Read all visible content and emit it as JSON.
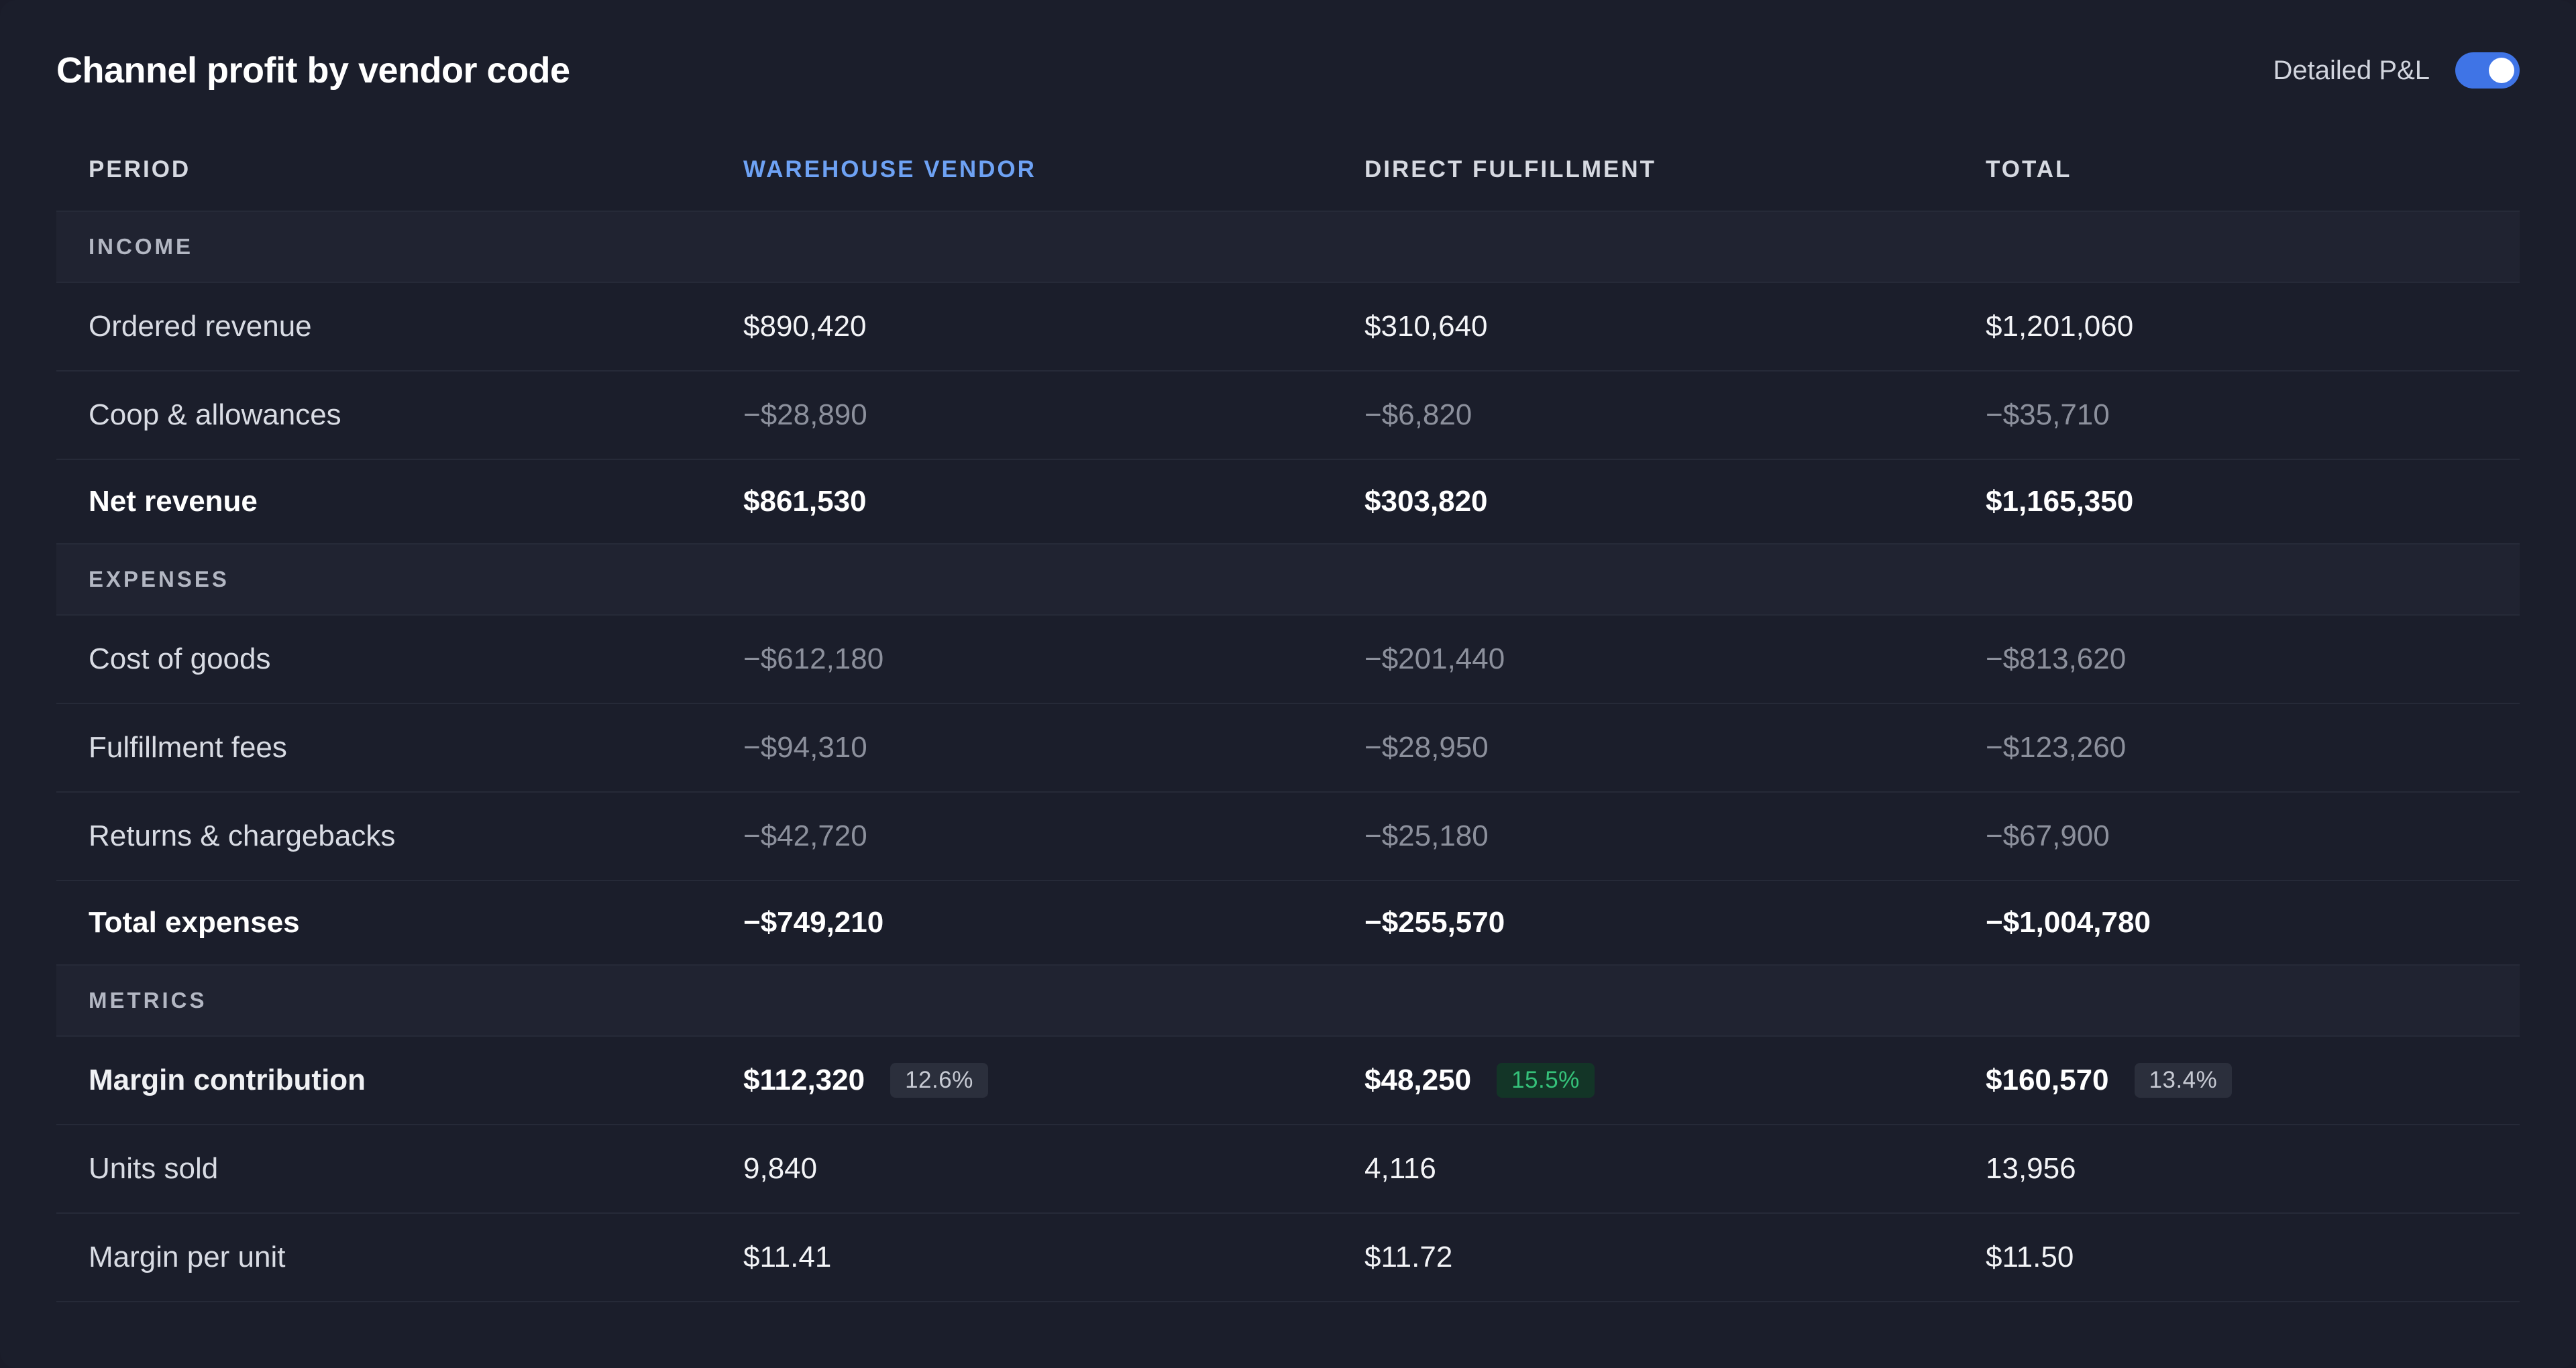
{
  "header": {
    "title": "Channel profit by vendor code",
    "toggle_label": "Detailed P&L",
    "toggle_on": true
  },
  "columns": [
    "PERIOD",
    "WAREHOUSE VENDOR",
    "DIRECT FULFILLMENT",
    "TOTAL"
  ],
  "colors": {
    "accent": "#6ea2f4",
    "toggle": "#3f74e6",
    "badge_good_text": "#35c27a",
    "badge_good_bg": "#133527"
  },
  "sections": {
    "income": "INCOME",
    "expenses": "EXPENSES",
    "metrics": "METRICS"
  },
  "rows": {
    "ordered_revenue": {
      "label": "Ordered revenue",
      "values": [
        "$890,420",
        "$310,640",
        "$1,201,060"
      ]
    },
    "coop": {
      "label": "Coop & allowances",
      "values": [
        "−$28,890",
        "−$6,820",
        "−$35,710"
      ]
    },
    "net_revenue": {
      "label": "Net revenue",
      "values": [
        "$861,530",
        "$303,820",
        "$1,165,350"
      ]
    },
    "cost_of_goods": {
      "label": "Cost of goods",
      "values": [
        "−$612,180",
        "−$201,440",
        "−$813,620"
      ]
    },
    "fulfillment_fees": {
      "label": "Fulfillment fees",
      "values": [
        "−$94,310",
        "−$28,950",
        "−$123,260"
      ]
    },
    "returns": {
      "label": "Returns & chargebacks",
      "values": [
        "−$42,720",
        "−$25,180",
        "−$67,900"
      ]
    },
    "total_expenses": {
      "label": "Total expenses",
      "values": [
        "−$749,210",
        "−$255,570",
        "−$1,004,780"
      ]
    },
    "margin_contribution": {
      "label": "Margin contribution",
      "values": [
        "$112,320",
        "$48,250",
        "$160,570"
      ],
      "badges": [
        "12.6%",
        "15.5%",
        "13.4%"
      ]
    },
    "units_sold": {
      "label": "Units sold",
      "values": [
        "9,840",
        "4,116",
        "13,956"
      ]
    },
    "margin_per_unit": {
      "label": "Margin per unit",
      "values": [
        "$11.41",
        "$11.72",
        "$11.50"
      ]
    }
  }
}
